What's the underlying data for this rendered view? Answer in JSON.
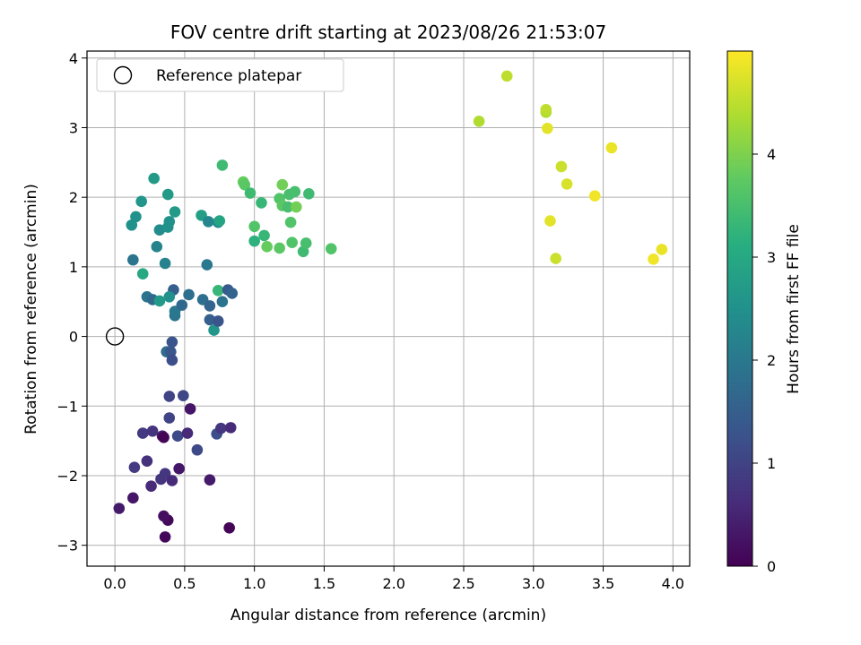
{
  "chart_data": {
    "type": "scatter",
    "title": "FOV centre drift starting at 2023/08/26 21:53:07",
    "xlabel": "Angular distance from reference (arcmin)",
    "ylabel": "Rotation from reference (arcmin)",
    "xlim": [
      -0.2,
      4.12
    ],
    "ylim": [
      -3.3,
      4.1
    ],
    "xticks": [
      0.0,
      0.5,
      1.0,
      1.5,
      2.0,
      2.5,
      3.0,
      3.5,
      4.0
    ],
    "xtick_labels": [
      "0.0",
      "0.5",
      "1.0",
      "1.5",
      "2.0",
      "2.5",
      "3.0",
      "3.5",
      "4.0"
    ],
    "yticks": [
      -3,
      -2,
      -1,
      0,
      1,
      2,
      3,
      4
    ],
    "ytick_labels": [
      "−3",
      "−2",
      "−1",
      "0",
      "1",
      "2",
      "3",
      "4"
    ],
    "grid": true,
    "legend": {
      "position": "top-left",
      "entries": [
        "Reference platepar"
      ]
    },
    "reference_point": {
      "x": 0.0,
      "y": 0.0
    },
    "colorbar": {
      "label": "Hours from first FF file",
      "colormap": "viridis",
      "range": [
        0,
        5.0
      ],
      "ticks": [
        0,
        1,
        2,
        3,
        4
      ],
      "tick_labels": [
        "0",
        "1",
        "2",
        "3",
        "4"
      ]
    },
    "points": [
      {
        "x": 0.03,
        "y": -2.47,
        "c": 0.35
      },
      {
        "x": 0.13,
        "y": -2.32,
        "c": 0.3
      },
      {
        "x": 0.36,
        "y": -2.88,
        "c": 0.1
      },
      {
        "x": 0.38,
        "y": -2.64,
        "c": 0.12
      },
      {
        "x": 0.35,
        "y": -2.58,
        "c": 0.2
      },
      {
        "x": 0.82,
        "y": -2.75,
        "c": 0.05
      },
      {
        "x": 0.26,
        "y": -2.15,
        "c": 0.6
      },
      {
        "x": 0.33,
        "y": -2.05,
        "c": 0.75
      },
      {
        "x": 0.36,
        "y": -1.97,
        "c": 0.8
      },
      {
        "x": 0.41,
        "y": -2.07,
        "c": 0.6
      },
      {
        "x": 0.46,
        "y": -1.9,
        "c": 0.3
      },
      {
        "x": 0.68,
        "y": -2.06,
        "c": 0.35
      },
      {
        "x": 0.14,
        "y": -1.88,
        "c": 0.85
      },
      {
        "x": 0.23,
        "y": -1.79,
        "c": 0.7
      },
      {
        "x": 0.2,
        "y": -1.39,
        "c": 0.85
      },
      {
        "x": 0.27,
        "y": -1.36,
        "c": 0.75
      },
      {
        "x": 0.34,
        "y": -1.43,
        "c": 0.4
      },
      {
        "x": 0.35,
        "y": -1.45,
        "c": 0.05
      },
      {
        "x": 0.39,
        "y": -1.17,
        "c": 1.0
      },
      {
        "x": 0.45,
        "y": -1.43,
        "c": 1.1
      },
      {
        "x": 0.52,
        "y": -1.39,
        "c": 0.6
      },
      {
        "x": 0.54,
        "y": -1.04,
        "c": 0.3
      },
      {
        "x": 0.59,
        "y": -1.63,
        "c": 1.1
      },
      {
        "x": 0.73,
        "y": -1.4,
        "c": 1.2
      },
      {
        "x": 0.76,
        "y": -1.32,
        "c": 0.8
      },
      {
        "x": 0.83,
        "y": -1.31,
        "c": 0.6
      },
      {
        "x": 0.39,
        "y": -0.86,
        "c": 1.0
      },
      {
        "x": 0.49,
        "y": -0.85,
        "c": 1.05
      },
      {
        "x": 0.37,
        "y": -0.22,
        "c": 1.75
      },
      {
        "x": 0.41,
        "y": -0.08,
        "c": 1.3
      },
      {
        "x": 0.4,
        "y": -0.22,
        "c": 1.35
      },
      {
        "x": 0.41,
        "y": -0.34,
        "c": 1.2
      },
      {
        "x": 0.43,
        "y": 0.3,
        "c": 1.9
      },
      {
        "x": 0.43,
        "y": 0.36,
        "c": 2.0
      },
      {
        "x": 0.48,
        "y": 0.45,
        "c": 1.7
      },
      {
        "x": 0.53,
        "y": 0.6,
        "c": 1.8
      },
      {
        "x": 0.42,
        "y": 0.67,
        "c": 1.5
      },
      {
        "x": 0.39,
        "y": 0.57,
        "c": 2.5
      },
      {
        "x": 0.23,
        "y": 0.57,
        "c": 1.9
      },
      {
        "x": 0.27,
        "y": 0.53,
        "c": 1.7
      },
      {
        "x": 0.32,
        "y": 0.51,
        "c": 2.7
      },
      {
        "x": 0.63,
        "y": 0.53,
        "c": 1.8
      },
      {
        "x": 0.68,
        "y": 0.44,
        "c": 1.6
      },
      {
        "x": 0.68,
        "y": 0.24,
        "c": 1.5
      },
      {
        "x": 0.71,
        "y": 0.09,
        "c": 2.6
      },
      {
        "x": 0.74,
        "y": 0.22,
        "c": 1.3
      },
      {
        "x": 0.74,
        "y": 0.66,
        "c": 3.3
      },
      {
        "x": 0.77,
        "y": 0.5,
        "c": 1.9
      },
      {
        "x": 0.81,
        "y": 0.67,
        "c": 1.4
      },
      {
        "x": 0.84,
        "y": 0.62,
        "c": 1.6
      },
      {
        "x": 0.13,
        "y": 1.1,
        "c": 1.9
      },
      {
        "x": 0.2,
        "y": 0.9,
        "c": 3.0
      },
      {
        "x": 0.36,
        "y": 1.05,
        "c": 2.2
      },
      {
        "x": 0.3,
        "y": 1.29,
        "c": 2.2
      },
      {
        "x": 0.12,
        "y": 1.6,
        "c": 2.5
      },
      {
        "x": 0.15,
        "y": 1.72,
        "c": 2.5
      },
      {
        "x": 0.19,
        "y": 1.94,
        "c": 2.6
      },
      {
        "x": 0.28,
        "y": 2.27,
        "c": 2.7
      },
      {
        "x": 0.32,
        "y": 1.53,
        "c": 2.4
      },
      {
        "x": 0.38,
        "y": 1.57,
        "c": 2.5
      },
      {
        "x": 0.39,
        "y": 1.65,
        "c": 2.5
      },
      {
        "x": 0.38,
        "y": 2.04,
        "c": 2.7
      },
      {
        "x": 0.43,
        "y": 1.79,
        "c": 2.7
      },
      {
        "x": 0.62,
        "y": 1.74,
        "c": 2.8
      },
      {
        "x": 0.66,
        "y": 1.03,
        "c": 2.0
      },
      {
        "x": 0.67,
        "y": 1.65,
        "c": 2.3
      },
      {
        "x": 0.74,
        "y": 1.64,
        "c": 2.3
      },
      {
        "x": 0.75,
        "y": 1.66,
        "c": 2.9
      },
      {
        "x": 0.77,
        "y": 2.46,
        "c": 3.4
      },
      {
        "x": 0.92,
        "y": 2.22,
        "c": 3.8
      },
      {
        "x": 0.93,
        "y": 2.18,
        "c": 3.7
      },
      {
        "x": 0.97,
        "y": 2.06,
        "c": 3.4
      },
      {
        "x": 1.0,
        "y": 1.58,
        "c": 3.6
      },
      {
        "x": 1.0,
        "y": 1.37,
        "c": 3.2
      },
      {
        "x": 1.05,
        "y": 1.92,
        "c": 3.3
      },
      {
        "x": 1.07,
        "y": 1.45,
        "c": 3.3
      },
      {
        "x": 1.09,
        "y": 1.29,
        "c": 3.8
      },
      {
        "x": 1.18,
        "y": 1.27,
        "c": 3.7
      },
      {
        "x": 1.18,
        "y": 1.98,
        "c": 3.6
      },
      {
        "x": 1.2,
        "y": 1.88,
        "c": 3.7
      },
      {
        "x": 1.2,
        "y": 2.18,
        "c": 3.9
      },
      {
        "x": 1.24,
        "y": 1.86,
        "c": 3.5
      },
      {
        "x": 1.25,
        "y": 2.04,
        "c": 3.5
      },
      {
        "x": 1.26,
        "y": 1.64,
        "c": 3.6
      },
      {
        "x": 1.27,
        "y": 1.35,
        "c": 3.6
      },
      {
        "x": 1.29,
        "y": 2.08,
        "c": 3.5
      },
      {
        "x": 1.3,
        "y": 1.86,
        "c": 3.9
      },
      {
        "x": 1.35,
        "y": 1.22,
        "c": 3.4
      },
      {
        "x": 1.37,
        "y": 1.34,
        "c": 3.5
      },
      {
        "x": 1.39,
        "y": 2.05,
        "c": 3.4
      },
      {
        "x": 1.55,
        "y": 1.26,
        "c": 3.6
      },
      {
        "x": 2.61,
        "y": 3.09,
        "c": 4.4
      },
      {
        "x": 2.81,
        "y": 3.74,
        "c": 4.5
      },
      {
        "x": 3.09,
        "y": 3.22,
        "c": 4.4
      },
      {
        "x": 3.09,
        "y": 3.26,
        "c": 4.5
      },
      {
        "x": 3.1,
        "y": 2.99,
        "c": 4.8
      },
      {
        "x": 3.12,
        "y": 1.66,
        "c": 4.8
      },
      {
        "x": 3.16,
        "y": 1.12,
        "c": 4.6
      },
      {
        "x": 3.2,
        "y": 2.44,
        "c": 4.6
      },
      {
        "x": 3.24,
        "y": 2.19,
        "c": 4.7
      },
      {
        "x": 3.44,
        "y": 2.02,
        "c": 4.9
      },
      {
        "x": 3.56,
        "y": 2.71,
        "c": 4.85
      },
      {
        "x": 3.86,
        "y": 1.11,
        "c": 4.9
      },
      {
        "x": 3.92,
        "y": 1.25,
        "c": 4.85
      }
    ]
  }
}
